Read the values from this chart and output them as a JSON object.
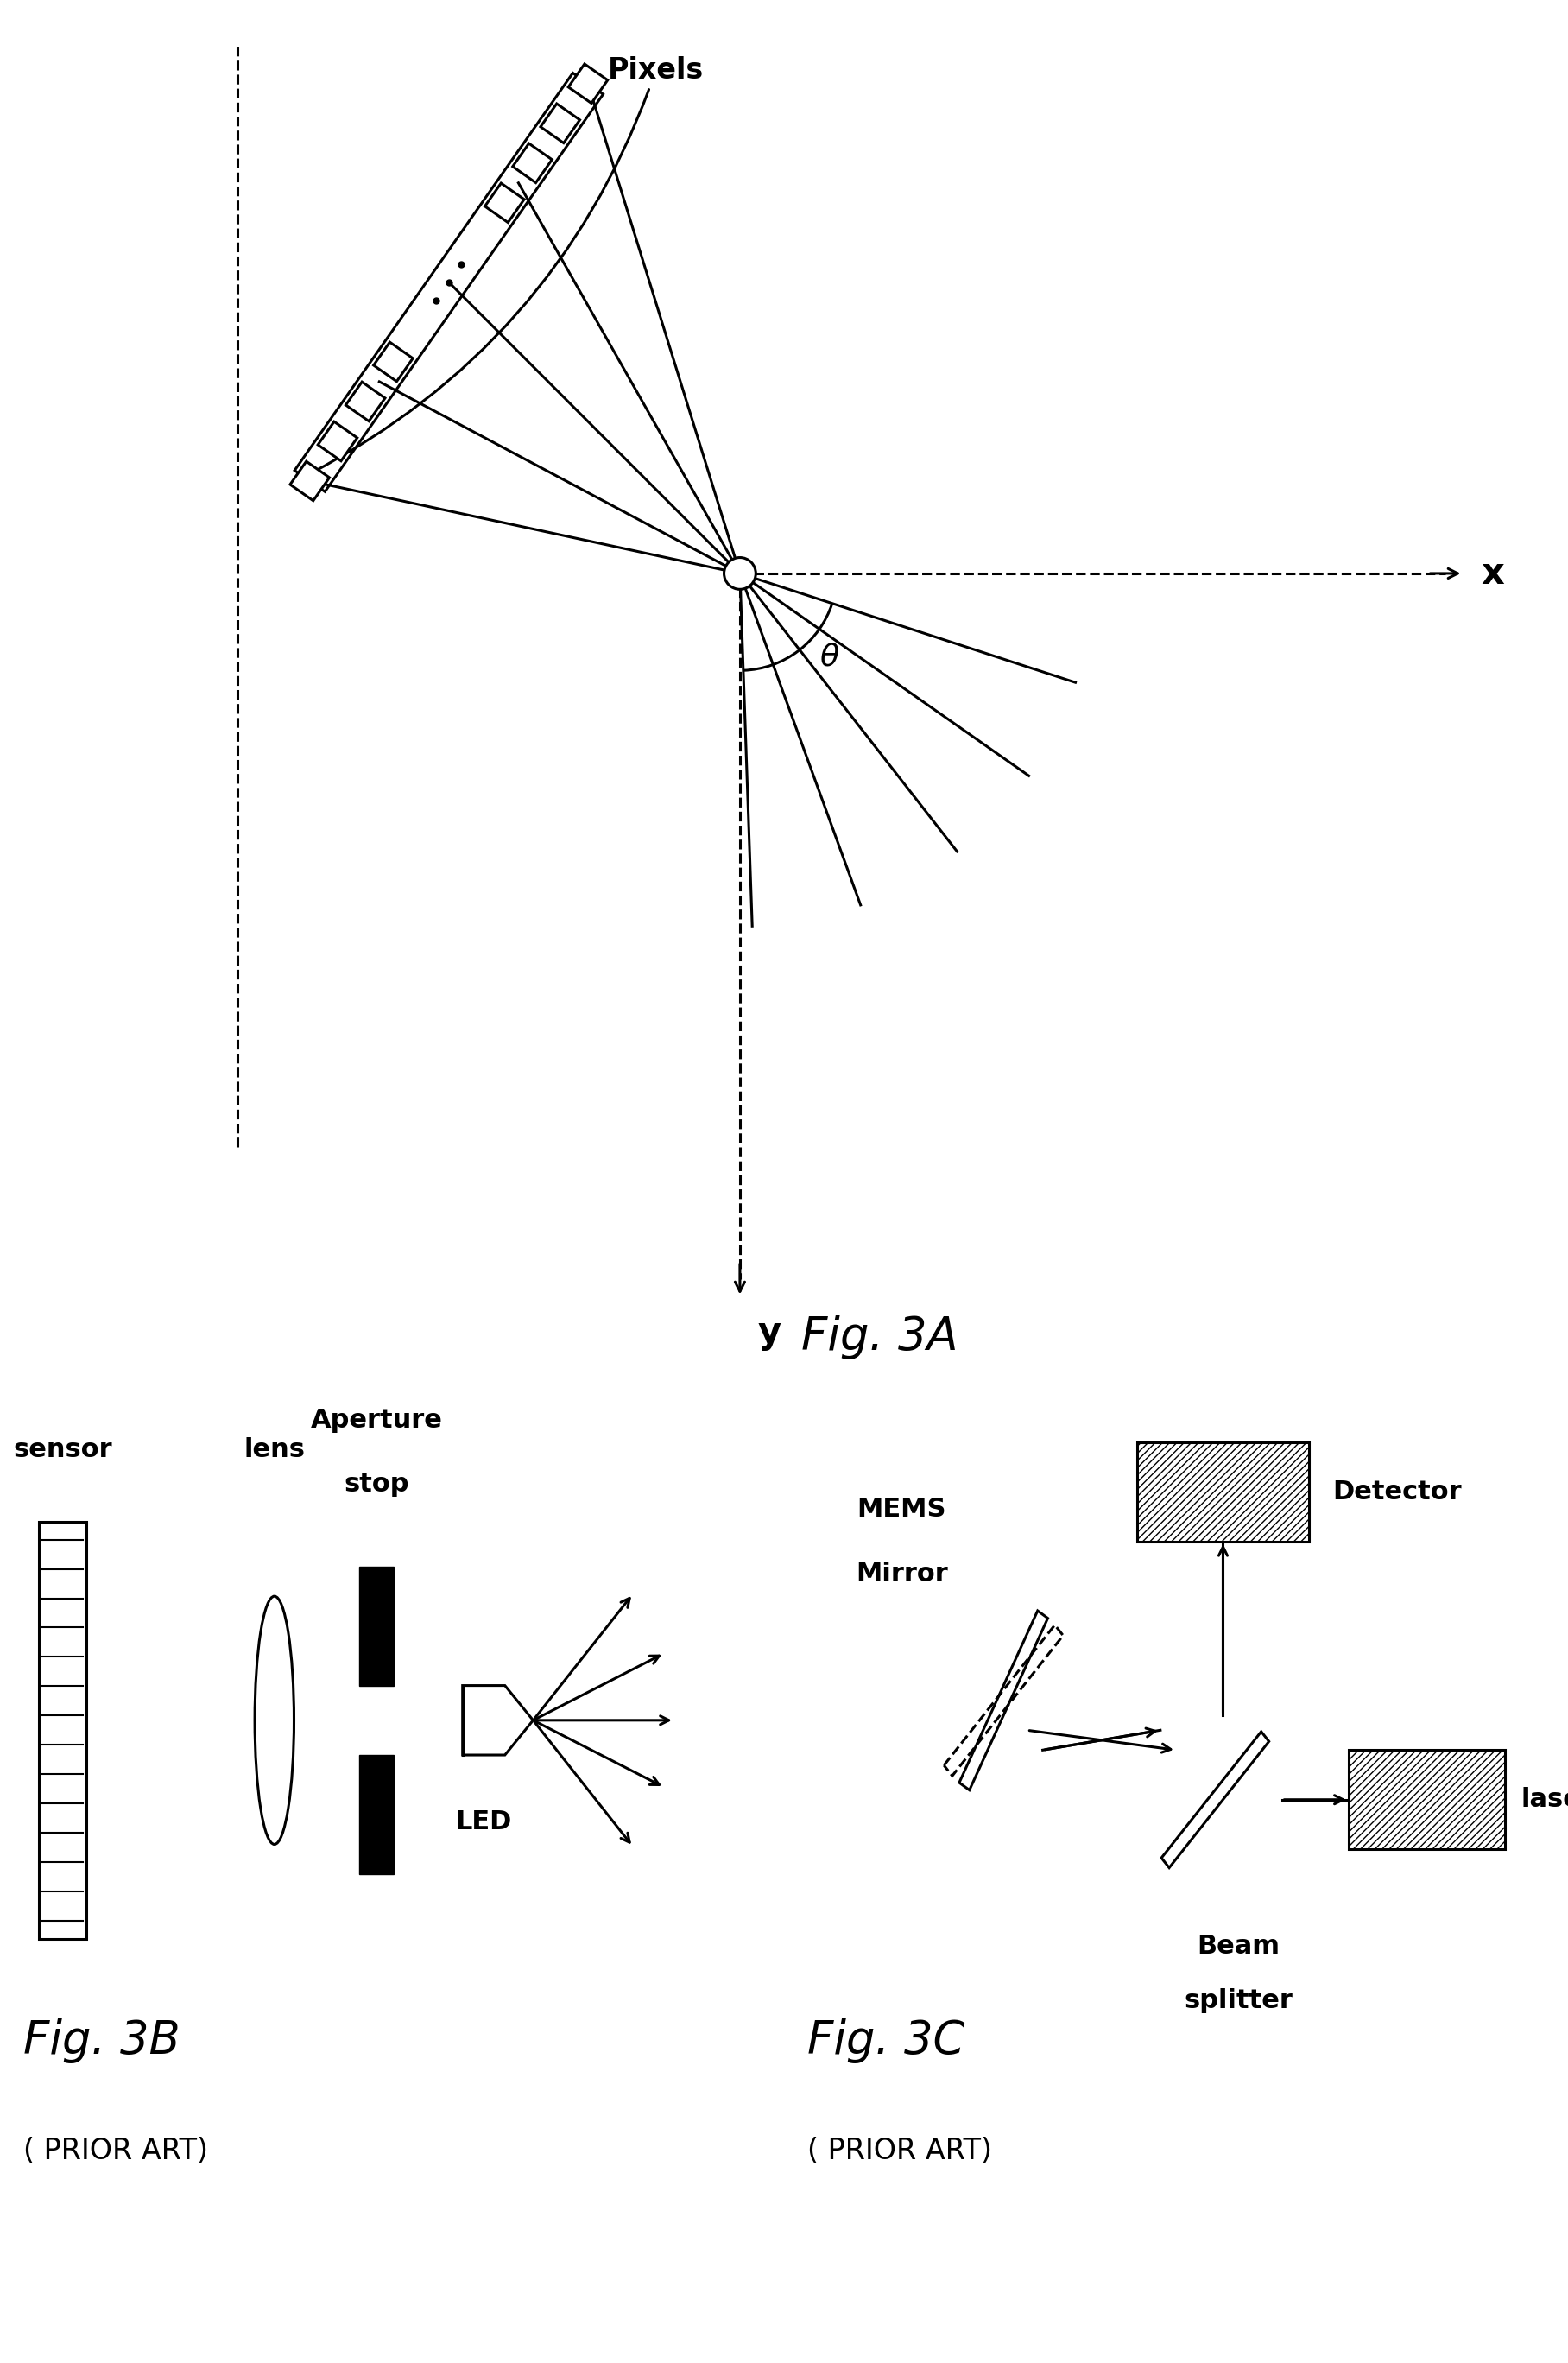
{
  "bg_color": "#ffffff",
  "lc": "#000000",
  "lw": 2.2,
  "fig3a_label": "Fig. 3A",
  "fig3b_label": "Fig. 3B",
  "fig3c_label": "Fig. 3C",
  "prior_art": "( PRIOR ART)",
  "x_label": "x",
  "y_label": "y",
  "theta": "θ",
  "pixels": "Pixels",
  "sensor": "sensor",
  "lens": "lens",
  "aperture_line1": "Aperture",
  "aperture_line2": "stop",
  "lens_label2": "lens",
  "led": "LED",
  "mems_line1": "MEMS",
  "mems_line2": "Mirror",
  "detector": "Detector",
  "beam_splitter_line1": "Beam",
  "beam_splitter_line2": "splitter",
  "laser": "laser"
}
